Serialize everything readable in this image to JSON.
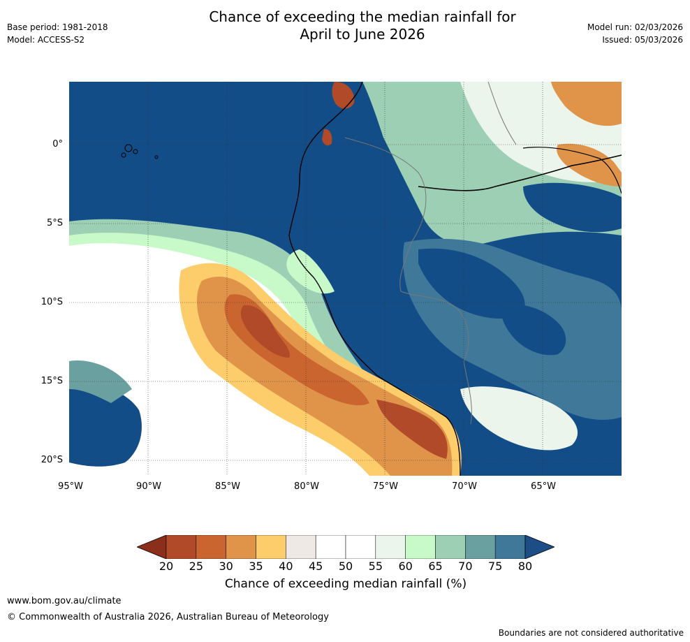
{
  "header": {
    "title_line1": "Chance of exceeding the median rainfall for",
    "title_line2": "April to June 2026",
    "base_period": "Base period: 1981-2018",
    "model": "Model: ACCESS-S2",
    "model_run": "Model run: 02/03/2026",
    "issued": "Issued: 05/03/2026"
  },
  "map": {
    "lat_labels": [
      "0°",
      "5°S",
      "10°S",
      "15°S",
      "20°S"
    ],
    "lon_labels": [
      "95°W",
      "90°W",
      "85°W",
      "80°W",
      "75°W",
      "70°W",
      "65°W"
    ]
  },
  "colorbar": {
    "ticks": [
      "20",
      "25",
      "30",
      "35",
      "40",
      "45",
      "50",
      "55",
      "60",
      "65",
      "70",
      "75",
      "80"
    ],
    "colors": [
      "#8b2e1c",
      "#b04a28",
      "#ca6530",
      "#e0944a",
      "#fdcc6b",
      "#eee9e4",
      "#ffffff",
      "#ffffff",
      "#ecf5ec",
      "#c8fac9",
      "#9dcfb5",
      "#6aa0a0",
      "#40789a",
      "#1b4e86"
    ],
    "label": "Chance of exceeding median rainfall (%)"
  },
  "footer": {
    "url": "www.bom.gov.au/climate",
    "copyright": "© Commonwealth of Australia 2026, Australian Bureau of Meteorology",
    "note": "Boundaries are not considered authoritative"
  }
}
